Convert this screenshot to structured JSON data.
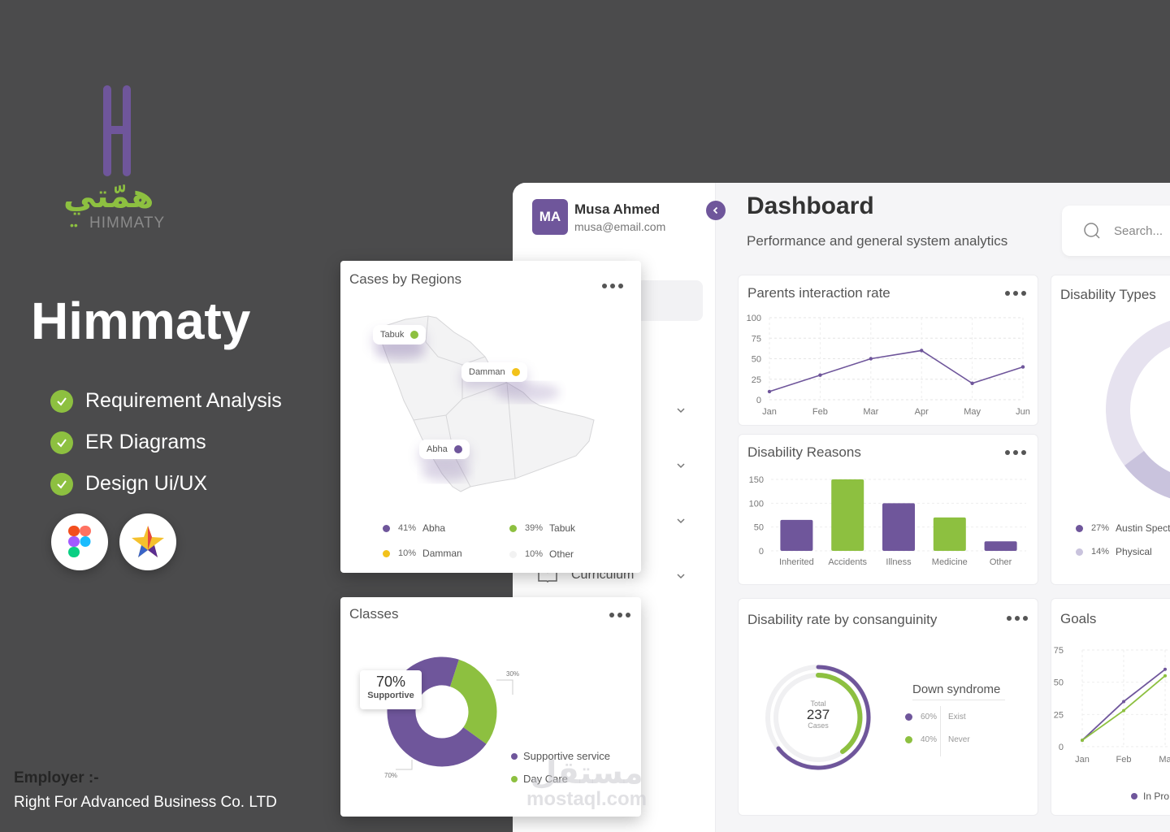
{
  "brand": {
    "logo_arabic": "همّتي",
    "logo_english": "HIMMATY",
    "project_title": "Himmaty",
    "accent_green": "#8dc040",
    "accent_purple": "#6f569b"
  },
  "services": [
    "Requirement Analysis",
    "ER Diagrams",
    "Design Ui/UX"
  ],
  "tools": [
    "figma-icon",
    "star-app-icon"
  ],
  "employer": {
    "label": "Employer :-",
    "name": "Right For Advanced Business Co. LTD"
  },
  "user": {
    "initials": "MA",
    "name": "Musa Ahmed",
    "email": "musa@email.com"
  },
  "sidebar": {
    "visible_item": "Curriculum"
  },
  "header": {
    "title": "Dashboard",
    "subtitle": "Performance and general system analytics",
    "search_placeholder": "Search..."
  },
  "cards": {
    "parents_interaction": "Parents interaction rate",
    "disability_reasons": "Disability Reasons",
    "disability_types": "Disability Types",
    "consanguinity": "Disability rate by consanguinity",
    "goals": "Goals",
    "cases_by_regions": "Cases by Regions",
    "classes": "Classes"
  },
  "regions": {
    "pins": [
      "Tabuk",
      "Damman",
      "Abha"
    ],
    "legend": [
      {
        "pct": "41%",
        "label": "Abha",
        "color": "#6f569b"
      },
      {
        "pct": "39%",
        "label": "Tabuk",
        "color": "#8dc040"
      },
      {
        "pct": "10%",
        "label": "Damman",
        "color": "#f2c21b"
      },
      {
        "pct": "10%",
        "label": "Other",
        "color": "#f2f2f2"
      }
    ]
  },
  "classes_card": {
    "tooltip_pct": "70%",
    "tooltip_label": "Supportive",
    "label_30": "30%",
    "label_70": "70%",
    "legend": [
      "Supportive service",
      "Day Care"
    ]
  },
  "disability_types": {
    "legend": [
      {
        "pct": "27%",
        "label": "Austin Spect",
        "color": "#6f569b"
      },
      {
        "pct": "14%",
        "label": "Physical",
        "color": "#c9c3dd"
      }
    ]
  },
  "consanguinity": {
    "total_label": "Total",
    "total_value": "237",
    "total_unit": "Cases",
    "heading": "Down syndrome",
    "rows": [
      {
        "pct": "60%",
        "label": "Exist",
        "color": "#6f569b"
      },
      {
        "pct": "40%",
        "label": "Never",
        "color": "#8dc040"
      }
    ]
  },
  "goals_legend": "In Pro",
  "watermark": {
    "arabic": "مستقل",
    "english": "mostaql.com"
  },
  "chart_data": [
    {
      "type": "line",
      "title": "Parents interaction rate",
      "categories": [
        "Jan",
        "Feb",
        "Mar",
        "Apr",
        "May",
        "Jun"
      ],
      "values": [
        10,
        30,
        50,
        60,
        20,
        40
      ],
      "ylim": [
        0,
        100
      ],
      "yticks": [
        "100",
        "75",
        "50",
        "25",
        "0"
      ],
      "grid": true
    },
    {
      "type": "bar",
      "title": "Disability Reasons",
      "categories": [
        "Inherited",
        "Accidents",
        "Illness",
        "Medicine",
        "Other"
      ],
      "values": [
        65,
        150,
        100,
        70,
        20
      ],
      "colors": [
        "#6f569b",
        "#8dc040",
        "#6f569b",
        "#8dc040",
        "#6f569b"
      ],
      "ylim": [
        0,
        150
      ],
      "yticks": [
        "150",
        "100",
        "50",
        "0"
      ]
    },
    {
      "type": "line",
      "title": "Goals",
      "categories": [
        "Jan",
        "Feb",
        "Ma"
      ],
      "series": [
        {
          "values": [
            5,
            35,
            60
          ],
          "color": "#6f569b"
        },
        {
          "values": [
            5,
            28,
            55
          ],
          "color": "#8dc040"
        }
      ],
      "ylim": [
        0,
        75
      ],
      "yticks": [
        "75",
        "50",
        "25",
        "0"
      ]
    },
    {
      "type": "pie",
      "title": "Classes",
      "values": [
        70,
        30
      ],
      "labels": [
        "Supportive service",
        "Day Care"
      ],
      "colors": [
        "#6f569b",
        "#8dc040"
      ]
    }
  ]
}
